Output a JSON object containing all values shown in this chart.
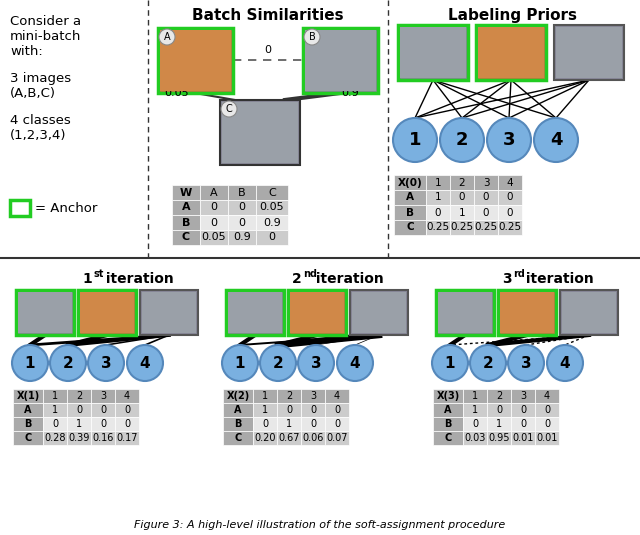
{
  "batch_sim_title": "Batch Similarities",
  "labeling_priors_title": "Labeling Priors",
  "W_table": {
    "header": [
      "W",
      "A",
      "B",
      "C"
    ],
    "rows": [
      [
        "A",
        "0",
        "0",
        "0.05"
      ],
      [
        "B",
        "0",
        "0",
        "0.9"
      ],
      [
        "C",
        "0.05",
        "0.9",
        "0"
      ]
    ]
  },
  "X0_table": {
    "header": [
      "X(0)",
      "1",
      "2",
      "3",
      "4"
    ],
    "rows": [
      [
        "A",
        "1",
        "0",
        "0",
        "0"
      ],
      [
        "B",
        "0",
        "1",
        "0",
        "0"
      ],
      [
        "C",
        "0.25",
        "0.25",
        "0.25",
        "0.25"
      ]
    ]
  },
  "iter_titles": [
    "1",
    "2",
    "3"
  ],
  "iter_sups": [
    "st",
    "nd",
    "rd"
  ],
  "X1_table": {
    "header": [
      "X(1)",
      "1",
      "2",
      "3",
      "4"
    ],
    "rows": [
      [
        "A",
        "1",
        "0",
        "0",
        "0"
      ],
      [
        "B",
        "0",
        "1",
        "0",
        "0"
      ],
      [
        "C",
        "0.28",
        "0.39",
        "0.16",
        "0.17"
      ]
    ]
  },
  "X2_table": {
    "header": [
      "X(2)",
      "1",
      "2",
      "3",
      "4"
    ],
    "rows": [
      [
        "A",
        "1",
        "0",
        "0",
        "0"
      ],
      [
        "B",
        "0",
        "1",
        "0",
        "0"
      ],
      [
        "C",
        "0.20",
        "0.67",
        "0.06",
        "0.07"
      ]
    ]
  },
  "X3_table": {
    "header": [
      "X(3)",
      "1",
      "2",
      "3",
      "4"
    ],
    "rows": [
      [
        "A",
        "1",
        "0",
        "0",
        "0"
      ],
      [
        "B",
        "0",
        "1",
        "0",
        "0"
      ],
      [
        "C",
        "0.03",
        "0.95",
        "0.01",
        "0.01"
      ]
    ]
  },
  "green_color": "#22cc22",
  "blue_circle_color": "#7ab0e0",
  "blue_circle_edge": "#5588bb",
  "table_header_bg": "#aaaaaa",
  "table_row_dark": "#cccccc",
  "table_row_light": "#e8e8e8",
  "divider_color": "#333333",
  "caption": "Figure 3: A high-level illustration of the soft-assignment procedure"
}
